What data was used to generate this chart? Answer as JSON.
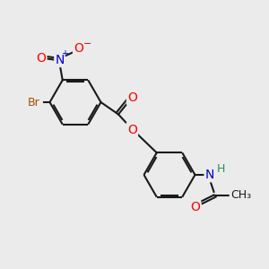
{
  "bg_color": "#ebebeb",
  "bond_color": "#1a1a1a",
  "atom_colors": {
    "O": "#ff0000",
    "N": "#0000cd",
    "Br": "#a05000",
    "H": "#2e8b57",
    "C": "#1a1a1a"
  },
  "font_size": 9,
  "lw": 1.5
}
